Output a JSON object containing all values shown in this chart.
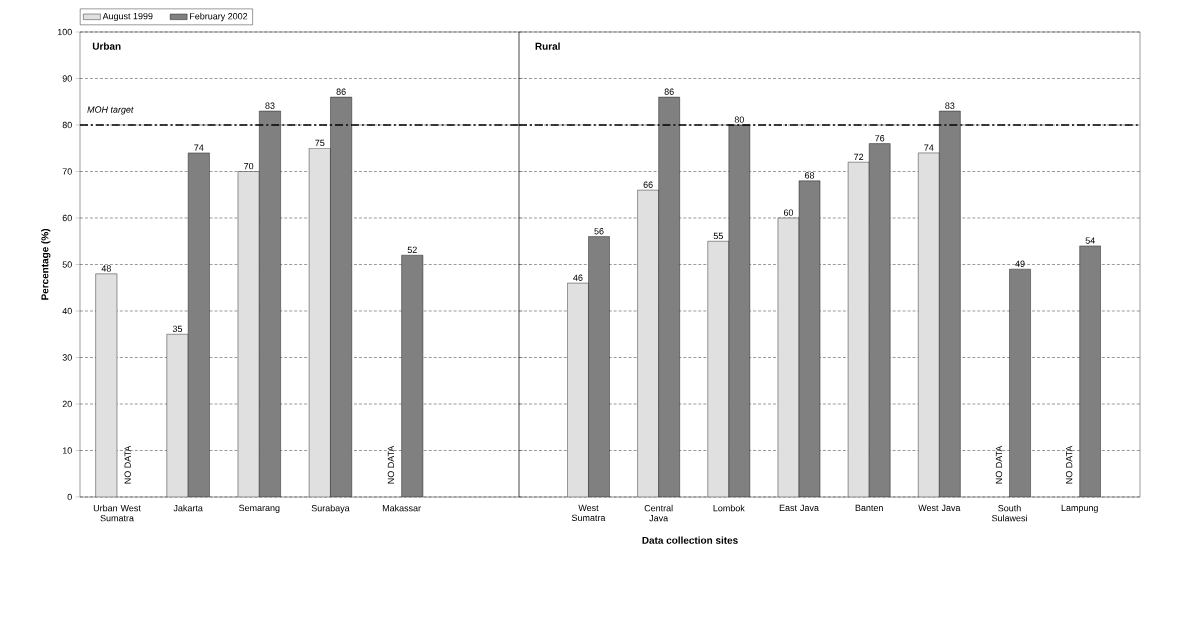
{
  "chart_data": [
    {
      "type": "bar",
      "title": "Urban",
      "ylabel": "Percentage (%)",
      "categories": [
        "Urban West Sumatra",
        "Jakarta",
        "Semarang",
        "Surabaya",
        "Makassar"
      ],
      "series": [
        {
          "name": "August 1999",
          "color": "#e0e0e0",
          "values": [
            48,
            35,
            70,
            75,
            null
          ],
          "value_labels": [
            "48",
            "35",
            "70",
            "75",
            "NO DATA"
          ]
        },
        {
          "name": "February 2002",
          "color": "#808080",
          "values": [
            null,
            74,
            83,
            86,
            52
          ],
          "value_labels": [
            "NO DATA",
            "74",
            "83",
            "86",
            "52"
          ]
        }
      ],
      "ylim": [
        0,
        100
      ],
      "yticks": [
        0,
        10,
        20,
        30,
        40,
        50,
        60,
        70,
        80,
        90,
        100
      ],
      "grid": "y",
      "legend": "top left",
      "ref_lines": [
        {
          "axis": "y",
          "value": 80,
          "label": "MOH target",
          "line_style": "dashed"
        }
      ]
    },
    {
      "type": "bar",
      "title": "Rural",
      "xlabel": "Data collection sites",
      "categories": [
        "West Sumatra",
        "Central Java",
        "Lombok",
        "East Java",
        "Banten",
        "West Java",
        "South Sulawesi",
        "Lampung"
      ],
      "series": [
        {
          "color": "#e0e0e0",
          "values": [
            46,
            66,
            55,
            60,
            72,
            74,
            null,
            null
          ],
          "value_labels": [
            "46",
            "66",
            "55",
            "60",
            "72",
            "74",
            "NO DATA",
            "NO DATA"
          ]
        },
        {
          "color": "#808080",
          "values": [
            56,
            86,
            80,
            68,
            76,
            83,
            49,
            54
          ],
          "value_labels": [
            "56",
            "86",
            "80",
            "68",
            "76",
            "83",
            "49",
            "54"
          ]
        }
      ],
      "ylim": [
        0,
        100
      ],
      "yticks": [
        0,
        10,
        20,
        30,
        40,
        50,
        60,
        70,
        80,
        90,
        100
      ],
      "grid": "y",
      "tick_labels": "x",
      "ref_lines": [
        {
          "axis": "y",
          "value": 80,
          "line_style": "dashed"
        }
      ]
    }
  ]
}
